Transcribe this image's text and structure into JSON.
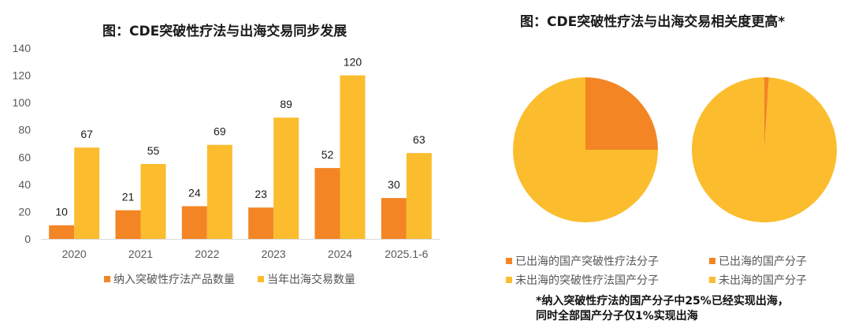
{
  "chart_data": [
    {
      "type": "bar",
      "title": "图：CDE突破性疗法与出海交易同步发展",
      "xlabel": "",
      "ylabel": "",
      "ylim": [
        0,
        140
      ],
      "yticks": [
        0,
        20,
        40,
        60,
        80,
        100,
        120,
        140
      ],
      "grid": false,
      "legend_position": "bottom",
      "categories": [
        "2020",
        "2021",
        "2022",
        "2023",
        "2024",
        "2025.1-6"
      ],
      "series": [
        {
          "name": "纳入突破性疗法产品数量",
          "color": "#F38524",
          "values": [
            10,
            21,
            24,
            23,
            52,
            30
          ]
        },
        {
          "name": "当年出海交易数量",
          "color": "#FBBD2E",
          "values": [
            67,
            55,
            69,
            89,
            120,
            63
          ]
        }
      ]
    },
    {
      "type": "pie",
      "title": "图：CDE突破性疗法与出海交易相关度更高*",
      "pies": [
        {
          "name": "突破性疗法国产分子",
          "slices": [
            {
              "label": "已出海的国产突破性疗法分子",
              "value": 25,
              "color": "#F38524"
            },
            {
              "label": "未出海的突破性疗法国产分子",
              "value": 75,
              "color": "#FBBD2E"
            }
          ]
        },
        {
          "name": "全部国产分子",
          "slices": [
            {
              "label": "已出海的国产分子",
              "value": 1,
              "color": "#F38524"
            },
            {
              "label": "未出海的国产分子",
              "value": 99,
              "color": "#FBBD2E"
            }
          ]
        }
      ],
      "legend_position": "bottom",
      "note": [
        "*纳入突破性疗法的国产分子中25%已经实现出海，",
        "同时全部国产分子仅1%实现出海"
      ]
    }
  ]
}
